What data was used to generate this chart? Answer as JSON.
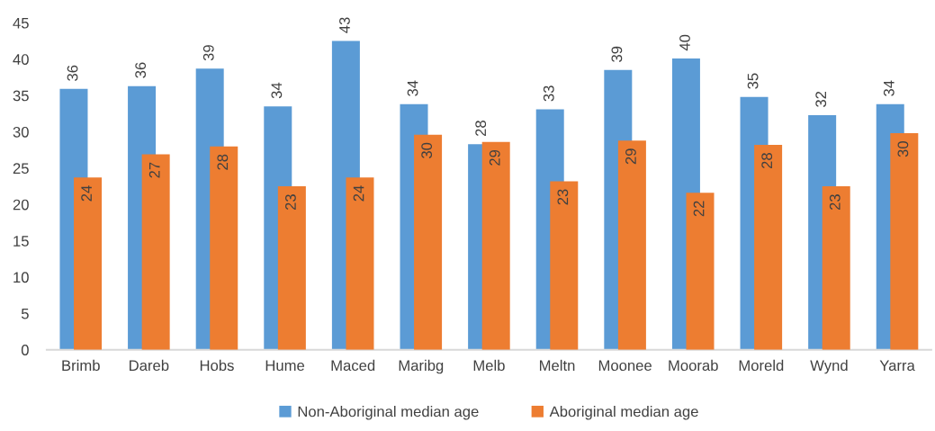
{
  "chart_data": {
    "type": "bar",
    "categories": [
      "Brimb",
      "Dareb",
      "Hobs",
      "Hume",
      "Maced",
      "Maribg",
      "Melb",
      "Meltn",
      "Moonee",
      "Moorab",
      "Moreld",
      "Wynd",
      "Yarra"
    ],
    "series": [
      {
        "name": "Non-Aboriginal median age",
        "color": "#5b9bd5",
        "values": [
          35.9,
          36.3,
          38.7,
          33.5,
          42.5,
          33.8,
          28.3,
          33.1,
          38.5,
          40.1,
          34.8,
          32.3,
          33.8
        ],
        "value_labels": [
          "36",
          "36",
          "39",
          "34",
          "43",
          "34",
          "28",
          "33",
          "39",
          "40",
          "35",
          "32",
          "34"
        ]
      },
      {
        "name": "Aboriginal median age",
        "color": "#ed7d31",
        "values": [
          23.7,
          26.9,
          28.0,
          22.5,
          23.7,
          29.6,
          28.6,
          23.2,
          28.8,
          21.6,
          28.2,
          22.5,
          29.8
        ],
        "value_labels": [
          "24",
          "27",
          "28",
          "23",
          "24",
          "30",
          "29",
          "23",
          "29",
          "22",
          "28",
          "23",
          "30"
        ]
      }
    ],
    "ylim": [
      0,
      45
    ],
    "yticks": [
      0,
      5,
      10,
      15,
      20,
      25,
      30,
      35,
      40,
      45
    ],
    "grid": false,
    "legend": "bottom"
  }
}
